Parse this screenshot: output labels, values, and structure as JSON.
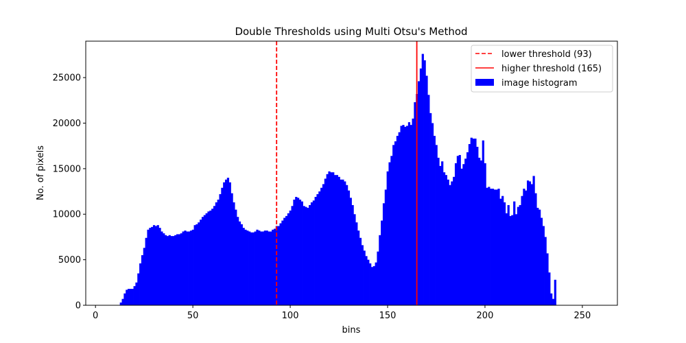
{
  "chart_data": {
    "type": "bar",
    "title": "Double Thresholds using Multi Otsu's Method",
    "xlabel": "bins",
    "ylabel": "No. of pixels",
    "xlim": [
      -5,
      268
    ],
    "ylim": [
      0,
      29000
    ],
    "xticks": [
      0,
      50,
      100,
      150,
      200,
      250
    ],
    "yticks": [
      0,
      5000,
      10000,
      15000,
      20000,
      25000
    ],
    "grid": false,
    "legend_position": "top-right",
    "colors": {
      "histogram": "#0000ff",
      "threshold": "#ff0000"
    },
    "histogram": {
      "name": "image histogram",
      "bins_start": 0,
      "values": [
        0,
        0,
        0,
        0,
        0,
        0,
        0,
        0,
        0,
        0,
        0,
        0,
        20,
        300,
        700,
        1300,
        1700,
        1800,
        1800,
        1800,
        2100,
        2500,
        3500,
        4600,
        5500,
        6300,
        7400,
        8300,
        8500,
        8600,
        8800,
        8700,
        8800,
        8500,
        8100,
        7900,
        7700,
        7600,
        7700,
        7600,
        7600,
        7700,
        7800,
        7800,
        7900,
        8100,
        8200,
        8100,
        8100,
        8200,
        8300,
        8800,
        8900,
        9100,
        9400,
        9700,
        9900,
        10100,
        10300,
        10400,
        10600,
        10900,
        11300,
        11600,
        12200,
        12900,
        13500,
        13800,
        14000,
        13500,
        12300,
        11300,
        10500,
        9700,
        9200,
        8900,
        8500,
        8300,
        8200,
        8100,
        8000,
        8000,
        8100,
        8300,
        8200,
        8100,
        8100,
        8200,
        8200,
        8100,
        8100,
        8300,
        8400,
        8700,
        8700,
        9000,
        9300,
        9600,
        9800,
        10100,
        10400,
        10900,
        11600,
        11900,
        11800,
        11600,
        11400,
        10900,
        10800,
        10700,
        11000,
        11300,
        11500,
        11900,
        12200,
        12500,
        12900,
        13300,
        13900,
        14400,
        14700,
        14600,
        14600,
        14300,
        14300,
        14100,
        13800,
        13800,
        13600,
        13200,
        12600,
        11800,
        11000,
        10000,
        9100,
        8200,
        7400,
        6600,
        6000,
        5400,
        5000,
        4600,
        4200,
        4300,
        4700,
        5900,
        7700,
        9300,
        11200,
        12700,
        14700,
        15700,
        16400,
        17600,
        18000,
        18600,
        19000,
        19700,
        19800,
        19600,
        19700,
        20100,
        19800,
        20500,
        22300,
        23200,
        24600,
        26000,
        27600,
        26900,
        25200,
        23100,
        21100,
        20000,
        18600,
        17600,
        16200,
        15300,
        15800,
        14600,
        14300,
        13800,
        13200,
        13600,
        14100,
        15600,
        16400,
        16500,
        15000,
        15500,
        16100,
        16800,
        17700,
        18400,
        18300,
        18300,
        17400,
        16200,
        15900,
        18100,
        15600,
        12900,
        13000,
        12800,
        12800,
        12700,
        12700,
        12800,
        11700,
        12000,
        11300,
        10100,
        11000,
        9800,
        9900,
        11400,
        10000,
        10800,
        11000,
        12000,
        12800,
        12600,
        13700,
        13600,
        13300,
        14200,
        12300,
        10700,
        10500,
        9600,
        8700,
        7500,
        5700,
        3600,
        1300,
        700,
        2800
      ]
    },
    "thresholds": [
      {
        "name": "lower threshold (93)",
        "value": 93,
        "style": "dashed"
      },
      {
        "name": "higher threshold (165)",
        "value": 165,
        "style": "solid"
      }
    ]
  }
}
